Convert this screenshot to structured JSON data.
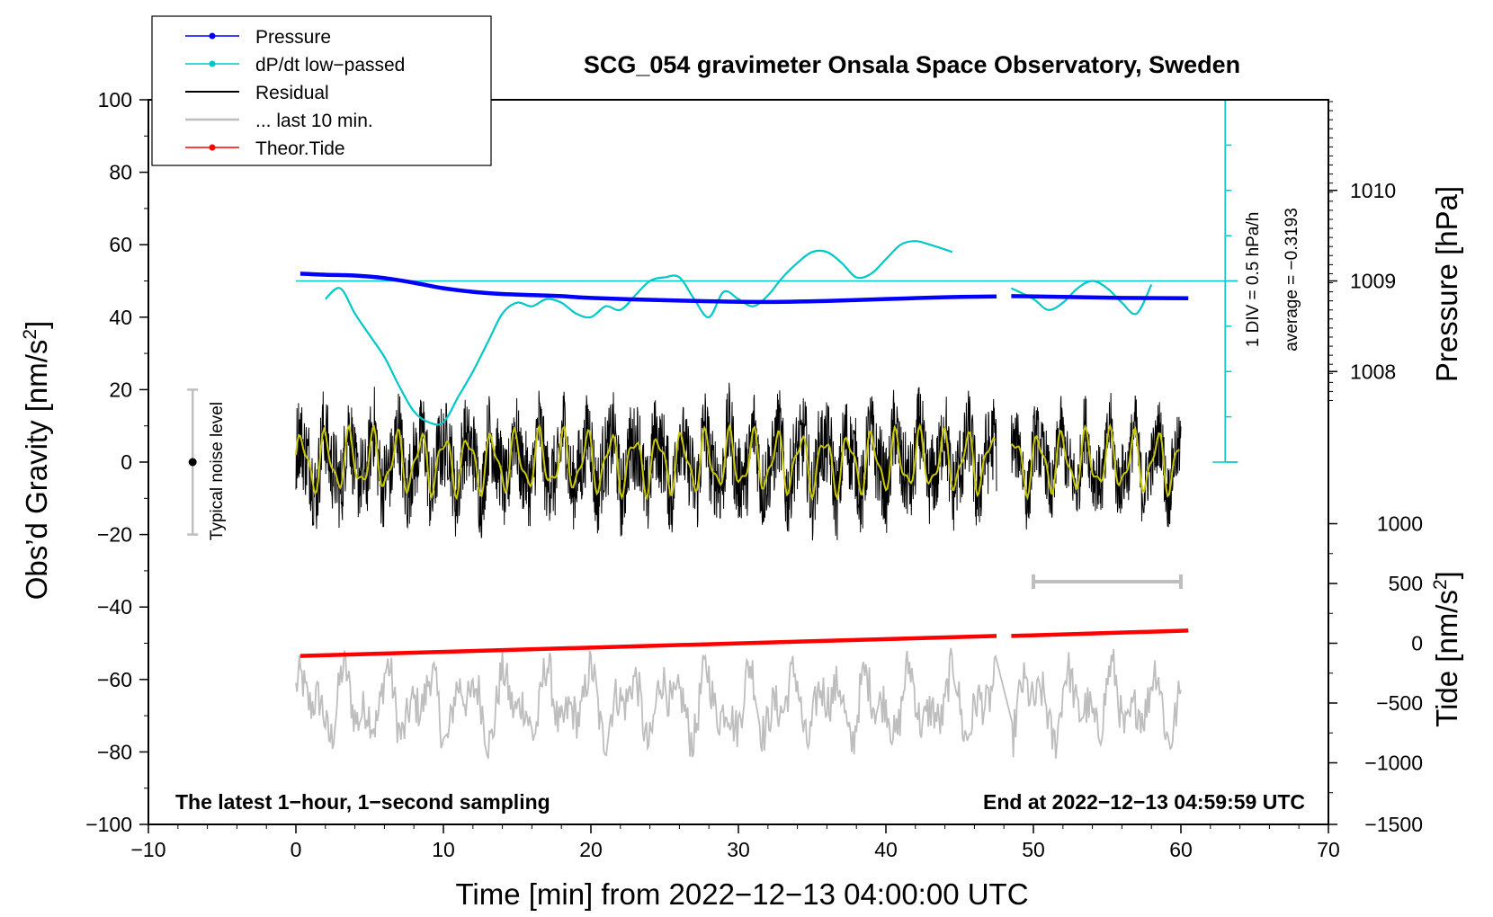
{
  "chart_data": {
    "type": "line",
    "title": "SCG_054 gravimeter Onsala Space Observatory, Sweden",
    "xlabel": "Time [min] from 2022−12−13 04:00:00 UTC",
    "ylabel": "Obs’d Gravity [nm/s",
    "ylabel_sup": "2",
    "ylabel_end": "]",
    "y2label": "Pressure [hPa]",
    "y3label": "Tide [nm/s",
    "y3label_sup": "2",
    "y3label_end": "]",
    "xlim": [
      -10,
      70
    ],
    "ylim": [
      -100,
      100
    ],
    "x_ticks": [
      -10,
      0,
      10,
      20,
      30,
      40,
      50,
      60,
      70
    ],
    "x_tick_labels": [
      "−10",
      "0",
      "10",
      "20",
      "30",
      "40",
      "50",
      "60",
      "70"
    ],
    "y_ticks": [
      -100,
      -80,
      -60,
      -40,
      -20,
      0,
      20,
      40,
      60,
      80,
      100
    ],
    "y_tick_labels": [
      "−100",
      "−80",
      "−60",
      "−40",
      "−20",
      "0",
      "20",
      "40",
      "60",
      "80",
      "100"
    ],
    "pressure_axis": {
      "ticks": [
        1010,
        1009,
        1008
      ],
      "tick_labels": [
        "1010",
        "1009",
        "1008"
      ],
      "gravity_equivalent": [
        75,
        50,
        25
      ]
    },
    "tide_axis": {
      "ticks": [
        1000,
        500,
        0,
        -500,
        -1000,
        -1500
      ],
      "tick_labels": [
        "1000",
        "500",
        "0",
        "−500",
        "−1000",
        "−1500"
      ],
      "gravity_equivalent": [
        -17,
        -33.5,
        -50,
        -66.5,
        -83,
        -100
      ]
    },
    "legend": [
      {
        "label": "Pressure",
        "color": "#0000ff",
        "marker": "dot"
      },
      {
        "label": "dP/dt low−passed",
        "color": "#00c8c8",
        "marker": "dot"
      },
      {
        "label": "Residual",
        "color": "#000000",
        "marker": "none"
      },
      {
        "label": "... last 10 min.",
        "color": "#bebebe",
        "marker": "none"
      },
      {
        "label": "Theor.Tide",
        "color": "#ff0000",
        "marker": "dot"
      }
    ],
    "series": [
      {
        "name": "Pressure",
        "color": "#0000ff",
        "x": [
          0.3,
          2,
          4,
          6,
          8,
          10,
          12,
          14,
          16,
          18,
          20,
          24,
          28,
          32,
          36,
          40,
          44,
          47.5
        ],
        "y": [
          52,
          51.7,
          51.5,
          50.8,
          49.5,
          48,
          47,
          46.4,
          46.1,
          45.8,
          45.3,
          44.8,
          44.4,
          44.2,
          44.5,
          45,
          45.5,
          45.7
        ]
      },
      {
        "name": "Pressure (after gap)",
        "color": "#0000ff",
        "x": [
          48.5,
          52,
          56,
          60.5
        ],
        "y": [
          45.8,
          45.6,
          45.3,
          45.2
        ]
      },
      {
        "name": "dP/dt low-passed",
        "color": "#00c8c8",
        "x": [
          2,
          3,
          4,
          5,
          6,
          7,
          8,
          9,
          10,
          11,
          12,
          13,
          14,
          15,
          16,
          17,
          18,
          19,
          20,
          21,
          22,
          23,
          24,
          25,
          26,
          27,
          28,
          29,
          30,
          31,
          32,
          33,
          34,
          35,
          36,
          37,
          38,
          39,
          40,
          41,
          42,
          43,
          44.5
        ],
        "y": [
          45,
          48,
          41,
          35,
          29,
          21,
          14,
          11,
          11,
          18,
          25,
          33,
          41,
          44,
          43,
          45,
          44,
          41,
          40,
          43,
          42,
          46,
          50,
          51,
          51,
          45,
          40,
          47,
          45,
          43,
          46,
          51,
          55,
          58,
          58,
          55,
          51,
          52,
          56,
          60,
          61,
          60,
          58
        ]
      },
      {
        "name": "dP/dt low-passed (after gap)",
        "color": "#00c8c8",
        "x": [
          48.5,
          50,
          51,
          52,
          53,
          54,
          55,
          56,
          57,
          58
        ],
        "y": [
          48,
          45,
          42,
          44,
          48,
          50,
          48,
          44,
          41,
          49
        ]
      },
      {
        "name": "Residual",
        "color": "#000000",
        "range": [
          0,
          47.5
        ],
        "amplitude": 15
      },
      {
        "name": "Residual (after gap)",
        "color": "#000000",
        "range": [
          48.5,
          60
        ],
        "amplitude": 12
      },
      {
        "name": "last 10 min. (magnified)",
        "color": "#bebebe",
        "range": [
          0,
          60
        ],
        "center": -67,
        "amplitude": 12
      },
      {
        "name": "Theor.Tide",
        "color": "#ff0000",
        "x": [
          0.3,
          47.5
        ],
        "y": [
          -53.5,
          -48
        ]
      },
      {
        "name": "Theor.Tide (after gap)",
        "color": "#ff0000",
        "x": [
          48.5,
          60.5
        ],
        "y": [
          -48,
          -46.5
        ]
      }
    ],
    "noise_bar": {
      "x": -7,
      "y_min": -20,
      "y_max": 20,
      "label": "Typical noise level"
    },
    "range_marker": {
      "x_start": 50,
      "x_end": 60,
      "y": -33
    },
    "scale_bar": {
      "x": 63,
      "label_1": "1 DIV = 0.5 hPa/h",
      "label_2": "average = −0.3193"
    },
    "dpdt_zero_line_y": 50,
    "annotation_left": "The latest 1−hour, 1−second sampling",
    "annotation_right": "End at 2022−12−13 04:59:59 UTC"
  }
}
